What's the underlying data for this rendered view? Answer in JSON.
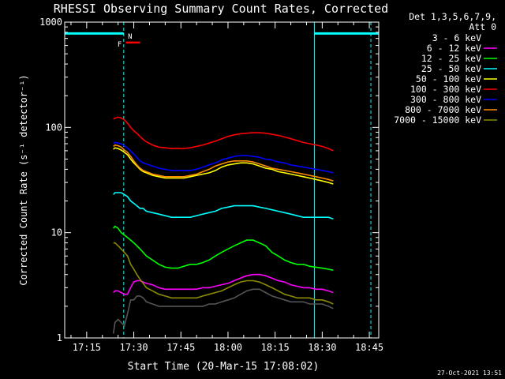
{
  "chart_data": {
    "type": "line",
    "title": "RHESSI Observing Summary Count Rates, Corrected",
    "xlabel": "Start Time (20-Mar-15 17:08:02)",
    "ylabel": "Corrected Count Rate (s⁻¹ detector⁻¹)",
    "x_unit": "minutes after 17:08:02 UT",
    "xlim": [
      0,
      100
    ],
    "ylim": [
      1,
      1000
    ],
    "y_scale": "log",
    "x_ticks": [
      {
        "v": 7,
        "label": "17:15"
      },
      {
        "v": 22,
        "label": "17:30"
      },
      {
        "v": 37,
        "label": "17:45"
      },
      {
        "v": 52,
        "label": "18:00"
      },
      {
        "v": 67,
        "label": "18:15"
      },
      {
        "v": 82,
        "label": "18:30"
      },
      {
        "v": 97,
        "label": "18:45"
      }
    ],
    "y_ticks": [
      {
        "v": 1,
        "label": "1"
      },
      {
        "v": 10,
        "label": "10"
      },
      {
        "v": 100,
        "label": "100"
      },
      {
        "v": 1000,
        "label": "1000"
      }
    ],
    "legend": {
      "placement": "right",
      "header": [
        "Det 1,3,5,6,7,9,",
        "Att 0"
      ]
    },
    "t": [
      15.5,
      16,
      17,
      18,
      19,
      20,
      21,
      22,
      23,
      24,
      25,
      26,
      28,
      30,
      32,
      34,
      36,
      38,
      40,
      42,
      44,
      46,
      48,
      50,
      52,
      54,
      56,
      58,
      60,
      62,
      64,
      66,
      68,
      70,
      72,
      74,
      76,
      78,
      80,
      82,
      84,
      85.5
    ],
    "series": [
      {
        "name": "3 - 6 keV",
        "color": "#000000",
        "values": [
          1.1,
          1.4,
          1.5,
          1.4,
          1.3,
          1.7,
          2.3,
          2.3,
          2.5,
          2.5,
          2.4,
          2.2,
          2.1,
          2.0,
          2.0,
          2.0,
          2.0,
          2.0,
          2.0,
          2.0,
          2.0,
          2.1,
          2.1,
          2.2,
          2.3,
          2.4,
          2.6,
          2.8,
          2.9,
          2.9,
          2.7,
          2.5,
          2.4,
          2.3,
          2.2,
          2.2,
          2.2,
          2.1,
          2.1,
          2.1,
          2.0,
          1.9
        ]
      },
      {
        "name": "6 - 12 keV",
        "color": "#ff00ff",
        "values": [
          2.7,
          2.8,
          2.8,
          2.7,
          2.6,
          2.6,
          3.0,
          3.4,
          3.5,
          3.5,
          3.4,
          3.3,
          3.2,
          3.0,
          2.9,
          2.9,
          2.9,
          2.9,
          2.9,
          2.9,
          3.0,
          3.0,
          3.1,
          3.2,
          3.3,
          3.5,
          3.7,
          3.9,
          4.0,
          4.0,
          3.9,
          3.7,
          3.5,
          3.4,
          3.2,
          3.1,
          3.0,
          3.0,
          2.9,
          2.9,
          2.8,
          2.7
        ]
      },
      {
        "name": "12 - 25 keV",
        "color": "#00ff00",
        "values": [
          11,
          11.5,
          11,
          10,
          9.5,
          9,
          8.5,
          8,
          7.5,
          7,
          6.5,
          6,
          5.5,
          5,
          4.7,
          4.6,
          4.6,
          4.8,
          5,
          5,
          5.2,
          5.5,
          6,
          6.5,
          7,
          7.5,
          8,
          8.5,
          8.5,
          8,
          7.5,
          6.5,
          6,
          5.5,
          5.2,
          5,
          5,
          4.8,
          4.7,
          4.6,
          4.5,
          4.4
        ]
      },
      {
        "name": "25 - 50 keV",
        "color": "#00ffff",
        "values": [
          23,
          24,
          24,
          24,
          23,
          22,
          20,
          19,
          18,
          17,
          17,
          16,
          15.5,
          15,
          14.5,
          14,
          14,
          14,
          14,
          14.5,
          15,
          15.5,
          16,
          17,
          17.5,
          18,
          18,
          18,
          18,
          17.5,
          17,
          16.5,
          16,
          15.5,
          15,
          14.5,
          14,
          14,
          14,
          14,
          14,
          13.5
        ]
      },
      {
        "name": "50 - 100 keV",
        "color": "#ffff00",
        "values": [
          62,
          64,
          63,
          61,
          58,
          55,
          50,
          46,
          43,
          40,
          38,
          37,
          35,
          34,
          33,
          33,
          33,
          33,
          34,
          35,
          36,
          37,
          39,
          42,
          44,
          45,
          46,
          46,
          45,
          43,
          41,
          40,
          38,
          37,
          36,
          35,
          34,
          33,
          32,
          31,
          30,
          29
        ]
      },
      {
        "name": "100 - 300 keV",
        "color": "#ff0000",
        "values": [
          120,
          122,
          125,
          123,
          118,
          110,
          100,
          93,
          88,
          82,
          77,
          73,
          68,
          65,
          64,
          63,
          63,
          63,
          64,
          66,
          68,
          71,
          74,
          78,
          82,
          85,
          87,
          88,
          89,
          89,
          88,
          86,
          84,
          81,
          78,
          75,
          72,
          70,
          68,
          66,
          63,
          60
        ]
      },
      {
        "name": "300 - 800 keV",
        "color": "#0000ff",
        "values": [
          70,
          72,
          71,
          70,
          67,
          64,
          60,
          56,
          52,
          48,
          46,
          45,
          43,
          41,
          40,
          39,
          39,
          39,
          39,
          40,
          42,
          44,
          46,
          49,
          51,
          53,
          54,
          54,
          53,
          52,
          50,
          49,
          47,
          46,
          44,
          43,
          42,
          41,
          40,
          39,
          38,
          37
        ]
      },
      {
        "name": "800 - 7000 keV",
        "color": "#ff8c00",
        "values": [
          66,
          68,
          67,
          65,
          61,
          58,
          53,
          48,
          44,
          41,
          39,
          38,
          36,
          35,
          34,
          34,
          34,
          34,
          35,
          36,
          38,
          40,
          43,
          45,
          47,
          48,
          48,
          48,
          47,
          45,
          43,
          41,
          40,
          39,
          38,
          37,
          36,
          35,
          34,
          33,
          32,
          31
        ]
      },
      {
        "name": "7000 - 15000 keV",
        "color": "#8b8b00",
        "values": [
          8,
          8,
          7.5,
          7,
          6.5,
          6,
          5,
          4.5,
          4,
          3.6,
          3.3,
          3,
          2.8,
          2.6,
          2.5,
          2.4,
          2.4,
          2.4,
          2.4,
          2.4,
          2.5,
          2.6,
          2.7,
          2.8,
          3,
          3.2,
          3.4,
          3.5,
          3.5,
          3.4,
          3.2,
          3,
          2.8,
          2.6,
          2.5,
          2.4,
          2.4,
          2.4,
          2.3,
          2.3,
          2.2,
          2.1
        ]
      }
    ],
    "annotations": {
      "flag_labels": [
        {
          "label": "F",
          "color": "#ff0000"
        },
        {
          "label": "N",
          "color": "#00ffff"
        }
      ],
      "flare_bar": {
        "x0": 19.5,
        "x1": 24.0,
        "color": "#ff0000"
      },
      "night_markers": {
        "color": "#00ffff",
        "intervals": [
          [
            0,
            18.8
          ],
          [
            79.5,
            100
          ]
        ],
        "solid_lines": [
          0,
          79.5
        ],
        "dashed_lines": [
          18.8,
          97.5
        ]
      }
    }
  },
  "footer": {
    "timestamp": "27-Oct-2021 13:51"
  }
}
